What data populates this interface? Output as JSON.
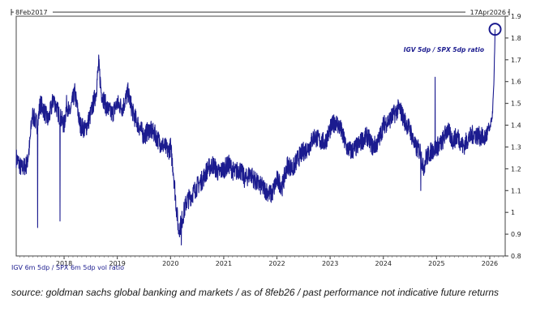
{
  "chart_data": {
    "type": "line",
    "title": "",
    "start_label": "8Feb2017",
    "end_label": "17Apr2026",
    "series_name": "IGV 6m 5dp / SPX 6m 5dp vol ratio",
    "annotation": "IGV 5dp / SPX 5dp ratio",
    "line_color": "#1b1b8f",
    "ylim": [
      0.8,
      1.9
    ],
    "y_ticks": [
      0.8,
      0.9,
      1,
      1.1,
      1.2,
      1.3,
      1.4,
      1.5,
      1.6,
      1.7,
      1.8,
      1.9
    ],
    "y_tick_labels": [
      "0.8",
      "0.9",
      "1",
      "1.1",
      "1.2",
      "1.3",
      "1.4",
      "1.5",
      "1.6",
      "1.7",
      "1.8",
      "1.9"
    ],
    "xlim": [
      2017.1,
      2026.29
    ],
    "x_ticks": [
      2018,
      2019,
      2020,
      2021,
      2022,
      2023,
      2024,
      2025,
      2026
    ],
    "x_tick_labels": [
      "2018",
      "2019",
      "2020",
      "2021",
      "2022",
      "2023",
      "2024",
      "2025",
      "2026"
    ],
    "x": [
      2017.1,
      2017.2,
      2017.3,
      2017.35,
      2017.4,
      2017.5,
      2017.55,
      2017.6,
      2017.7,
      2017.8,
      2017.9,
      2018.0,
      2018.05,
      2018.1,
      2018.2,
      2018.3,
      2018.4,
      2018.5,
      2018.6,
      2018.65,
      2018.7,
      2018.8,
      2018.9,
      2019.0,
      2019.1,
      2019.2,
      2019.3,
      2019.4,
      2019.5,
      2019.6,
      2019.7,
      2019.8,
      2019.9,
      2019.95,
      2020.0,
      2020.05,
      2020.1,
      2020.15,
      2020.2,
      2020.25,
      2020.3,
      2020.4,
      2020.5,
      2020.6,
      2020.7,
      2020.8,
      2020.9,
      2021.0,
      2021.1,
      2021.2,
      2021.3,
      2021.4,
      2021.5,
      2021.6,
      2021.7,
      2021.8,
      2021.9,
      2022.0,
      2022.1,
      2022.2,
      2022.3,
      2022.4,
      2022.5,
      2022.6,
      2022.7,
      2022.8,
      2022.9,
      2023.0,
      2023.1,
      2023.2,
      2023.3,
      2023.4,
      2023.5,
      2023.6,
      2023.7,
      2023.8,
      2023.9,
      2024.0,
      2024.1,
      2024.2,
      2024.3,
      2024.4,
      2024.5,
      2024.6,
      2024.7,
      2024.75,
      2024.8,
      2024.9,
      2025.0,
      2025.1,
      2025.2,
      2025.3,
      2025.4,
      2025.5,
      2025.6,
      2025.7,
      2025.8,
      2025.9,
      2026.0,
      2026.05,
      2026.08,
      2026.1
    ],
    "values": [
      1.25,
      1.2,
      1.22,
      1.3,
      1.45,
      1.4,
      1.5,
      1.48,
      1.42,
      1.52,
      1.45,
      1.4,
      1.5,
      1.45,
      1.55,
      1.4,
      1.38,
      1.45,
      1.55,
      1.68,
      1.55,
      1.48,
      1.45,
      1.5,
      1.48,
      1.55,
      1.45,
      1.4,
      1.35,
      1.38,
      1.36,
      1.32,
      1.3,
      1.28,
      1.3,
      1.2,
      1.05,
      0.92,
      0.95,
      1.0,
      1.05,
      1.08,
      1.12,
      1.15,
      1.2,
      1.22,
      1.18,
      1.2,
      1.22,
      1.18,
      1.2,
      1.15,
      1.18,
      1.14,
      1.12,
      1.1,
      1.08,
      1.15,
      1.12,
      1.22,
      1.2,
      1.25,
      1.28,
      1.3,
      1.35,
      1.33,
      1.32,
      1.38,
      1.42,
      1.38,
      1.3,
      1.28,
      1.3,
      1.33,
      1.35,
      1.3,
      1.32,
      1.4,
      1.42,
      1.45,
      1.48,
      1.42,
      1.38,
      1.3,
      1.28,
      1.2,
      1.25,
      1.28,
      1.3,
      1.32,
      1.38,
      1.33,
      1.35,
      1.3,
      1.34,
      1.36,
      1.35,
      1.34,
      1.38,
      1.45,
      1.6,
      1.84
    ],
    "spikes": [
      {
        "x": 2017.5,
        "y": 0.93
      },
      {
        "x": 2017.92,
        "y": 0.96
      },
      {
        "x": 2020.2,
        "y": 0.85
      },
      {
        "x": 2024.7,
        "y": 1.1
      },
      {
        "x": 2024.97,
        "y": 1.62
      }
    ]
  },
  "caption": "source: goldman sachs global banking and markets / as of 8feb26 / past performance not indicative future returns"
}
